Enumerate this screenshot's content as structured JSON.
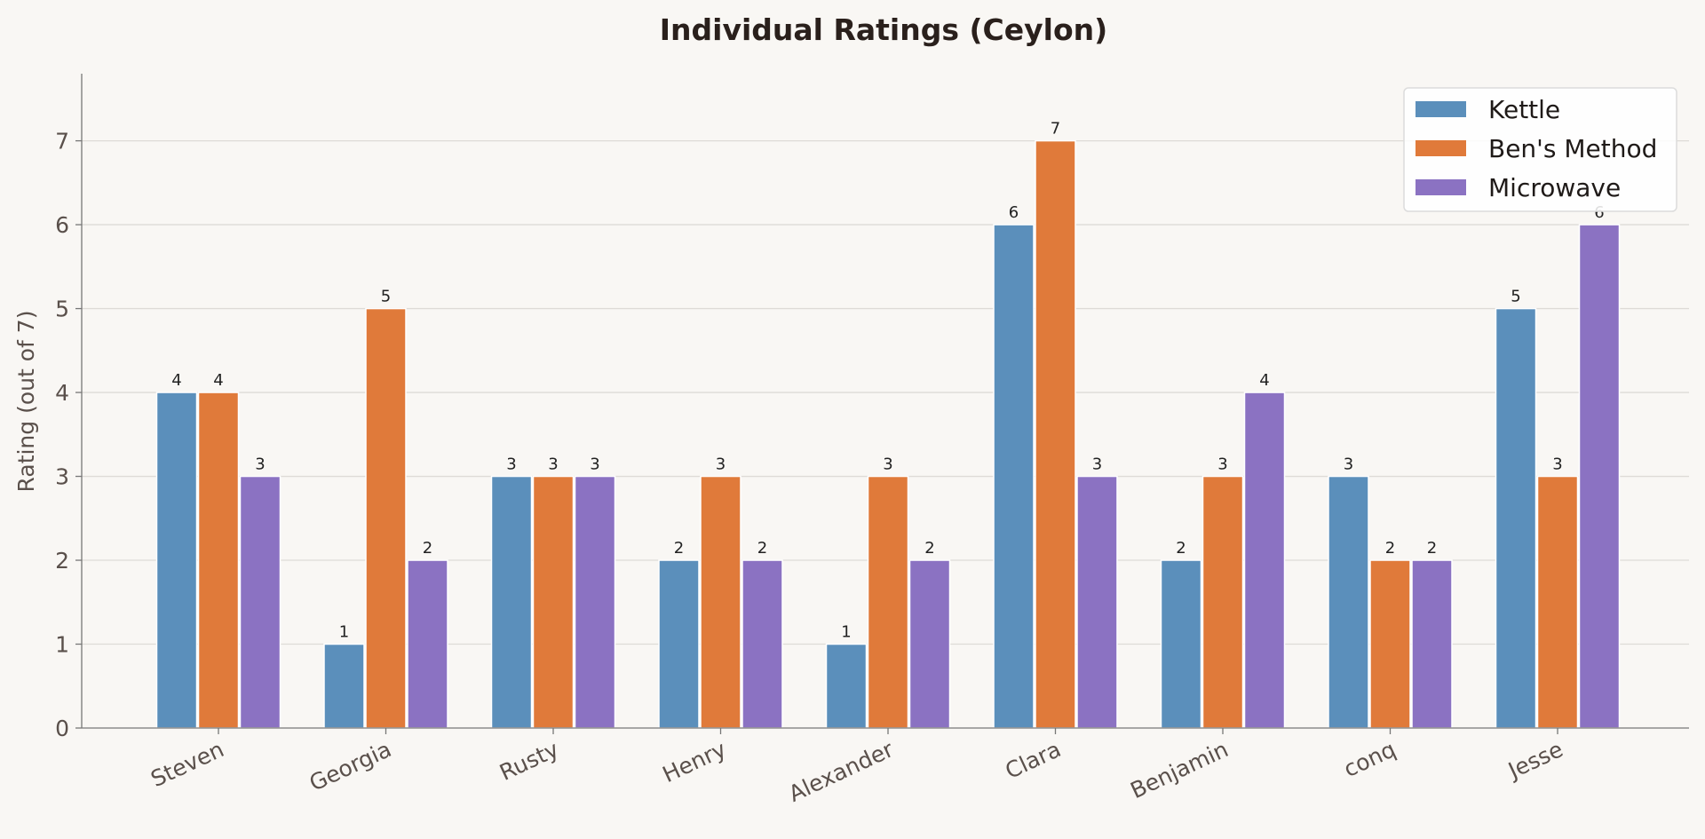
{
  "chart_data": {
    "type": "bar",
    "title": "Individual Ratings (Ceylon)",
    "xlabel": "",
    "ylabel": "Rating (out of 7)",
    "ylim": [
      0,
      7.8
    ],
    "yticks": [
      0,
      1,
      2,
      3,
      4,
      5,
      6,
      7
    ],
    "grid": "horizontal",
    "legend_position": "top-right",
    "categories": [
      "Steven",
      "Georgia",
      "Rusty",
      "Henry",
      "Alexander",
      "Clara",
      "Benjamin",
      "conq",
      "Jesse"
    ],
    "series": [
      {
        "name": "Kettle",
        "color": "#5b8fbb",
        "values": [
          4,
          1,
          3,
          2,
          1,
          6,
          2,
          3,
          5
        ]
      },
      {
        "name": "Ben's Method",
        "color": "#e07a3a",
        "values": [
          4,
          5,
          3,
          3,
          3,
          7,
          3,
          2,
          3
        ]
      },
      {
        "name": "Microwave",
        "color": "#8b72c2",
        "values": [
          3,
          2,
          3,
          2,
          2,
          3,
          4,
          2,
          6
        ]
      }
    ]
  }
}
